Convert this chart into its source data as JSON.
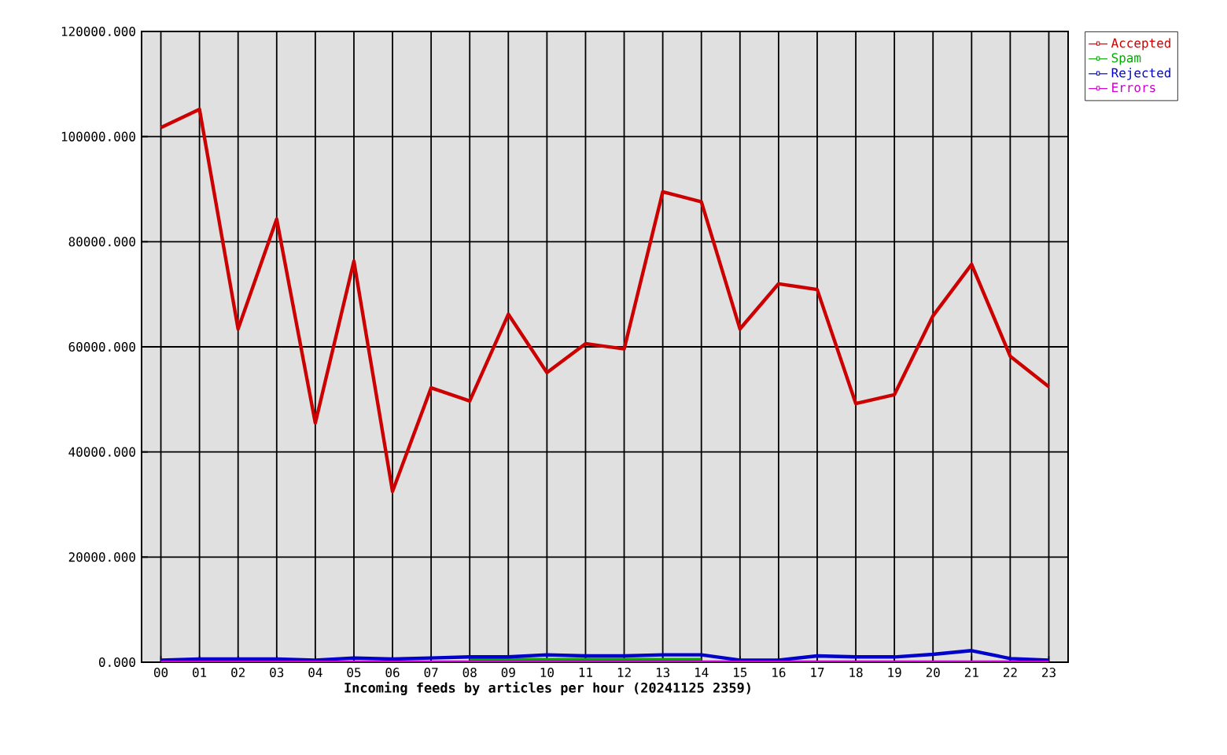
{
  "chart_data": {
    "type": "line",
    "xlabel": "Incoming feeds by articles per hour (20241125 2359)",
    "categories": [
      "00",
      "01",
      "02",
      "03",
      "04",
      "05",
      "06",
      "07",
      "08",
      "09",
      "10",
      "11",
      "12",
      "13",
      "14",
      "15",
      "16",
      "17",
      "18",
      "19",
      "20",
      "21",
      "22",
      "23"
    ],
    "series": [
      {
        "name": "Accepted",
        "color": "#cc0000",
        "values": [
          101700,
          105200,
          63400,
          84300,
          45500,
          76300,
          32500,
          52200,
          49700,
          66200,
          55100,
          60600,
          59600,
          89500,
          87600,
          63400,
          72000,
          70900,
          49200,
          50900,
          65900,
          75700,
          58200,
          52400
        ]
      },
      {
        "name": "Spam",
        "color": "#00aa00",
        "values": [
          null,
          null,
          null,
          null,
          null,
          null,
          null,
          null,
          500,
          500,
          500,
          500,
          500,
          500,
          500,
          null,
          null,
          null,
          null,
          null,
          null,
          null,
          null,
          null
        ]
      },
      {
        "name": "Rejected",
        "color": "#0000cc",
        "values": [
          400,
          600,
          600,
          600,
          400,
          800,
          600,
          800,
          1000,
          1000,
          1400,
          1200,
          1200,
          1400,
          1400,
          400,
          400,
          1200,
          1000,
          1000,
          1500,
          2200,
          700,
          400
        ]
      },
      {
        "name": "Errors",
        "color": "#cc00cc",
        "values": [
          0,
          0,
          0,
          0,
          0,
          0,
          0,
          0,
          0,
          0,
          0,
          0,
          0,
          0,
          0,
          0,
          0,
          0,
          0,
          0,
          0,
          0,
          0,
          0
        ]
      }
    ],
    "ylim": [
      0,
      120000
    ],
    "yticks": [
      {
        "value": 0,
        "label": "0.000"
      },
      {
        "value": 20000,
        "label": "20000.000"
      },
      {
        "value": 40000,
        "label": "40000.000"
      },
      {
        "value": 60000,
        "label": "60000.000"
      },
      {
        "value": 80000,
        "label": "80000.000"
      },
      {
        "value": 100000,
        "label": "100000.000"
      },
      {
        "value": 120000,
        "label": "120000.000"
      }
    ],
    "grid": true,
    "legend": "top right",
    "line_style": "solid"
  }
}
